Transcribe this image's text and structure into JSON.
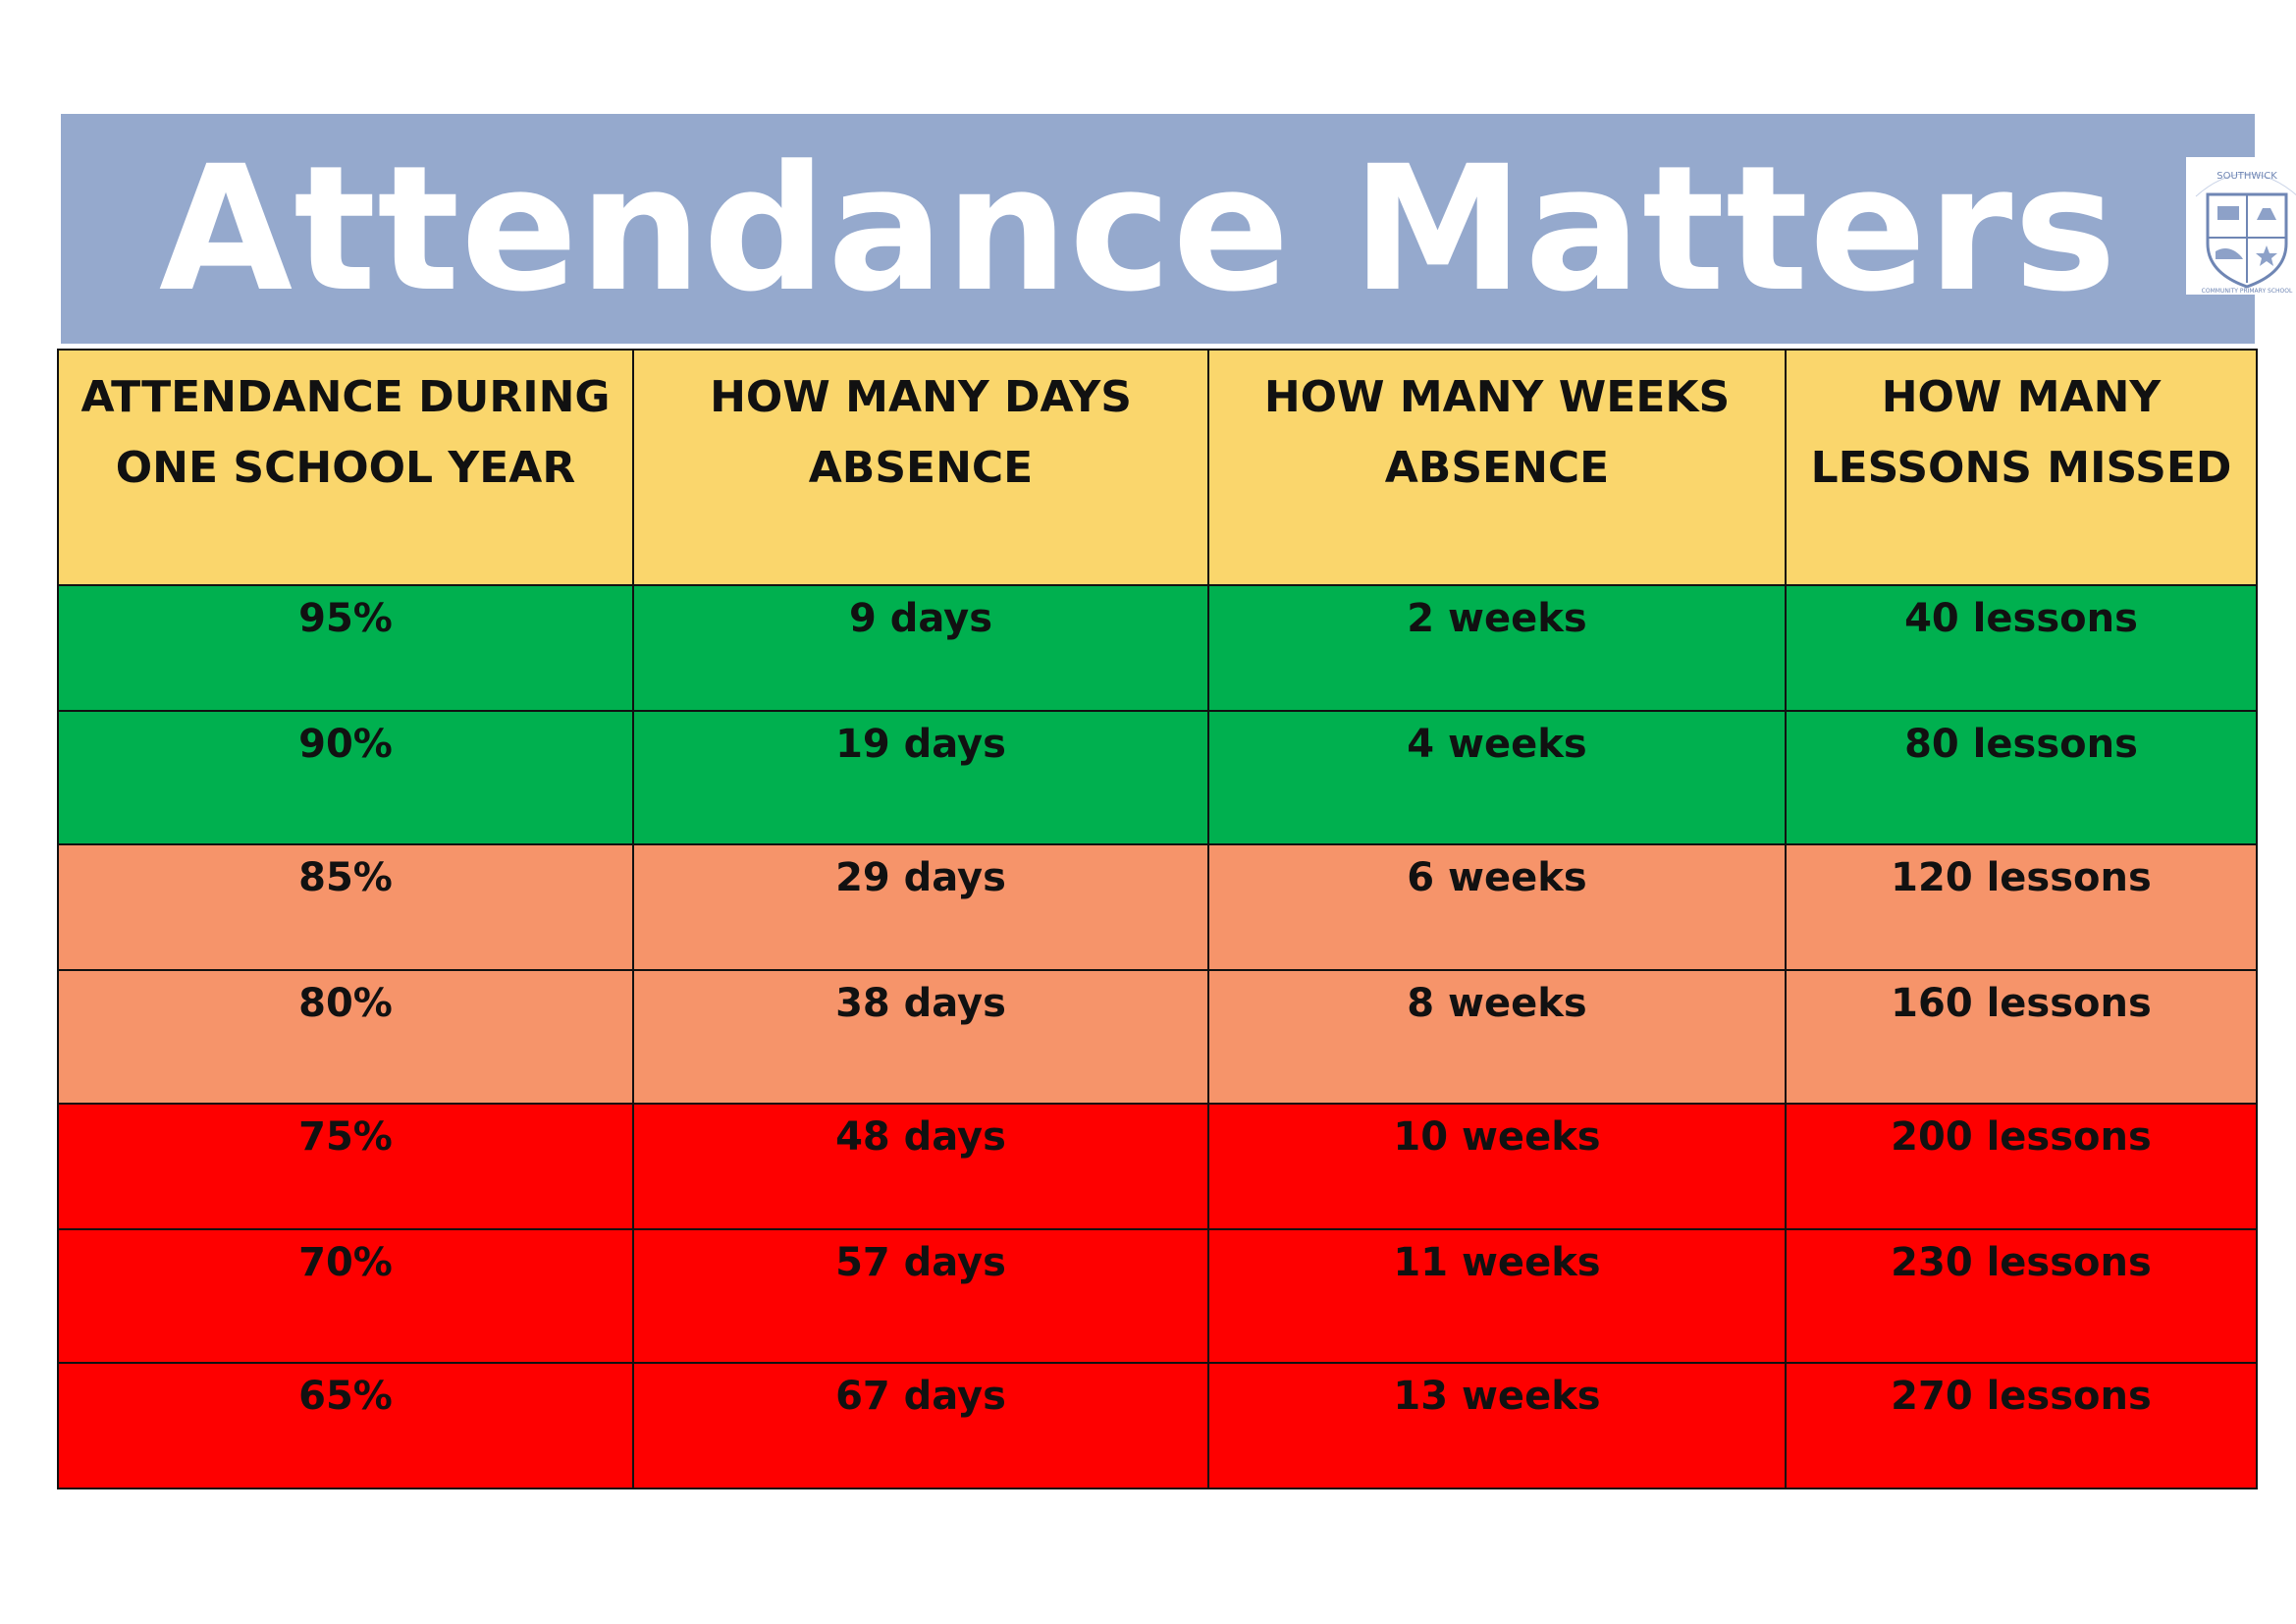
{
  "banner": {
    "title": "Attendance Matters",
    "background_color": "#95a9cd",
    "crest_label": "SOUTHWICK COMMUNITY PRIMARY SCHOOL"
  },
  "table": {
    "headers": [
      [
        "ATTENDANCE DURING",
        "ONE SCHOOL YEAR"
      ],
      [
        "HOW MANY DAYS",
        "ABSENCE"
      ],
      [
        "HOW MANY WEEKS",
        "ABSENCE"
      ],
      [
        "HOW MANY",
        "LESSONS MISSED"
      ]
    ],
    "header_color": "#fad66c",
    "rows": [
      {
        "band": "green",
        "attendance": "95%",
        "days": "9 days",
        "weeks": "2 weeks",
        "lessons": "40 lessons"
      },
      {
        "band": "green",
        "attendance": "90%",
        "days": "19 days",
        "weeks": "4 weeks",
        "lessons": "80 lessons"
      },
      {
        "band": "orange",
        "attendance": "85%",
        "days": "29 days",
        "weeks": "6 weeks",
        "lessons": "120 lessons"
      },
      {
        "band": "orange",
        "attendance": "80%",
        "days": "38 days",
        "weeks": "8 weeks",
        "lessons": "160 lessons"
      },
      {
        "band": "red",
        "attendance": "75%",
        "days": "48 days",
        "weeks": "10 weeks",
        "lessons": "200 lessons"
      },
      {
        "band": "red",
        "attendance": "70%",
        "days": "57 days",
        "weeks": "11 weeks",
        "lessons": "230 lessons"
      },
      {
        "band": "red",
        "attendance": "65%",
        "days": "67 days",
        "weeks": "13 weeks",
        "lessons": "270 lessons"
      }
    ],
    "band_colors": {
      "green": "#00b04f",
      "orange": "#f6946a",
      "red": "#fe0000"
    }
  }
}
